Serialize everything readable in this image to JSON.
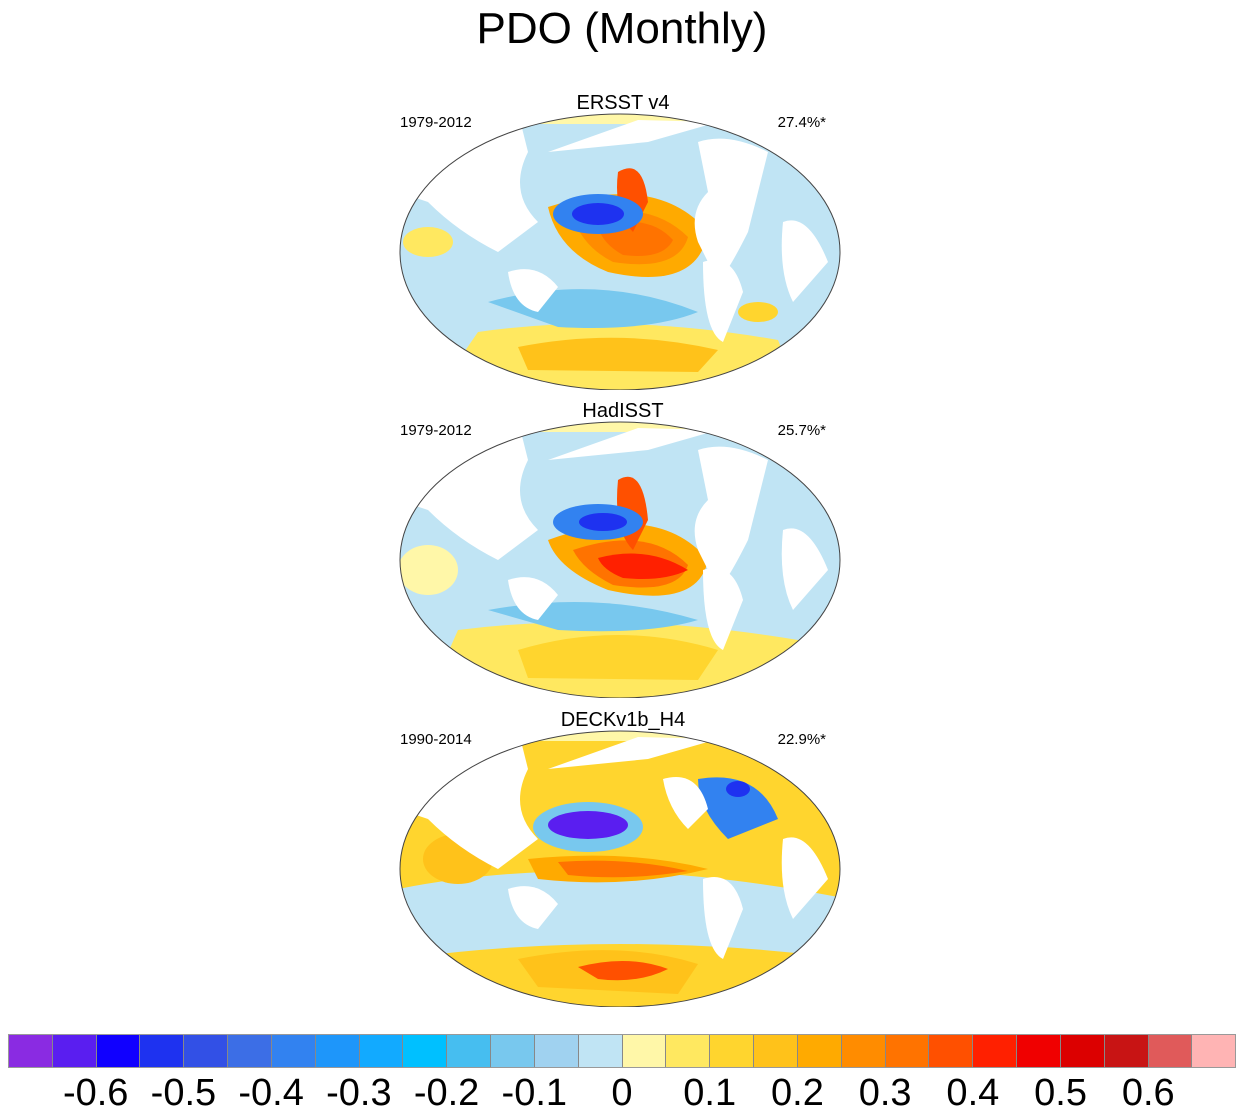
{
  "figure": {
    "title": "PDO (Monthly)"
  },
  "panels": [
    {
      "name": "ERSST v4",
      "period": "1979-2012",
      "variance": "27.4%*"
    },
    {
      "name": "HadISST",
      "period": "1979-2012",
      "variance": "25.7%*"
    },
    {
      "name": "DECKv1b_H4",
      "period": "1990-2014",
      "variance": "22.9%*"
    }
  ],
  "colorbar": {
    "colors": [
      "#8a2be2",
      "#5a1ef0",
      "#1000ff",
      "#1e32f0",
      "#3250e6",
      "#3c6ee6",
      "#3282f0",
      "#1e96fa",
      "#12aaff",
      "#00c0ff",
      "#46bef0",
      "#78c8ee",
      "#a0d2f0",
      "#c0e4f4",
      "#fff7a8",
      "#ffe860",
      "#ffd52e",
      "#ffc21a",
      "#ffaa00",
      "#ff8c00",
      "#ff7300",
      "#ff5000",
      "#ff2000",
      "#f00000",
      "#dc0000",
      "#c81414",
      "#e05a5a",
      "#ffb4b4"
    ],
    "tick_labels": [
      "-0.6",
      "-0.5",
      "-0.4",
      "-0.3",
      "-0.2",
      "-0.1",
      "0",
      "0.1",
      "0.2",
      "0.3",
      "0.4",
      "0.5",
      "0.6"
    ]
  }
}
